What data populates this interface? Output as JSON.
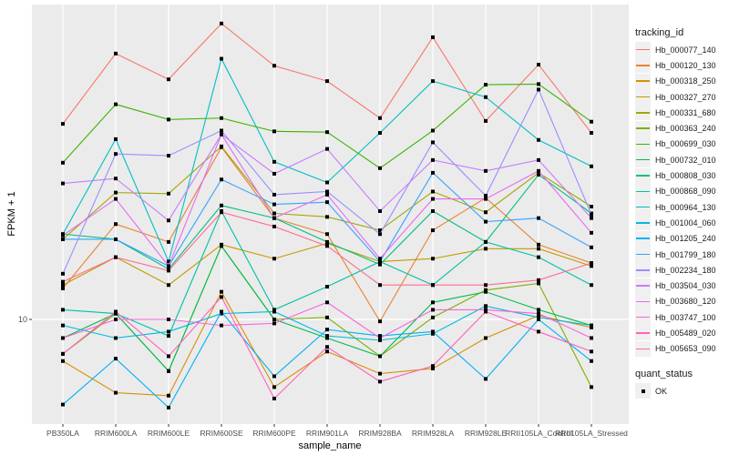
{
  "chart_data": {
    "type": "line",
    "title": "",
    "xlabel": "sample_name",
    "ylabel": "FPKM + 1",
    "yscale": "log10",
    "ylim": [
      6.0,
      46.0
    ],
    "yticks": [
      10
    ],
    "ytick_labels": [
      "10"
    ],
    "grid": true,
    "legend_position": "right",
    "categories": [
      "PB350LA",
      "RRIM600LA",
      "RRIM600LE",
      "RRIM600SE",
      "RRIM600PE",
      "RRIM901LA",
      "RRIM928BA",
      "RRIM928LA",
      "RRIM928LE",
      "RRII105LA_Control",
      "RRII105LA_Stressed"
    ],
    "legend_title": "tracking_id",
    "shape_legend_title": "quant_status",
    "shape_legend_items": [
      "OK"
    ],
    "series": [
      {
        "name": "Hb_000077_140",
        "color": "#F8766D",
        "values": [
          26.9,
          38.4,
          33.7,
          44.7,
          36.1,
          33.4,
          27.7,
          41.7,
          27.3,
          36.3,
          25.7
        ]
      },
      {
        "name": "Hb_000120_130",
        "color": "#EA8331",
        "values": [
          11.7,
          16.2,
          14.8,
          23.9,
          16.7,
          15.4,
          9.9,
          15.7,
          18.5,
          14.6,
          13.3
        ]
      },
      {
        "name": "Hb_000318_250",
        "color": "#D89000",
        "values": [
          8.1,
          6.9,
          6.8,
          11.5,
          7.1,
          8.5,
          7.6,
          7.8,
          9.1,
          10.2,
          9.6
        ]
      },
      {
        "name": "Hb_000327_270",
        "color": "#C09B00",
        "values": [
          11.9,
          13.7,
          11.9,
          14.6,
          13.6,
          14.7,
          13.4,
          13.6,
          14.3,
          14.3,
          13.1
        ]
      },
      {
        "name": "Hb_000331_680",
        "color": "#A3A500",
        "values": [
          15.0,
          19.0,
          18.9,
          24.0,
          17.1,
          16.8,
          15.7,
          19.1,
          17.2,
          21.0,
          17.7
        ]
      },
      {
        "name": "Hb_000363_240",
        "color": "#7CAE00",
        "values": [
          8.4,
          10.3,
          7.7,
          14.5,
          10.0,
          10.1,
          8.3,
          10.1,
          11.6,
          12.0,
          7.1
        ]
      },
      {
        "name": "Hb_000699_030",
        "color": "#39B600",
        "values": [
          22.1,
          29.7,
          27.5,
          27.7,
          25.9,
          25.8,
          21.5,
          26.0,
          32.8,
          32.9,
          27.2
        ]
      },
      {
        "name": "Hb_000732_010",
        "color": "#00BB4E",
        "values": [
          9.1,
          10.3,
          7.7,
          14.5,
          10.0,
          9.1,
          8.3,
          10.9,
          11.5,
          10.5,
          9.7
        ]
      },
      {
        "name": "Hb_000808_030",
        "color": "#00BF7D",
        "values": [
          15.4,
          15.0,
          12.9,
          17.8,
          16.7,
          14.8,
          13.2,
          17.3,
          14.8,
          20.8,
          17.1
        ]
      },
      {
        "name": "Hb_000868_090",
        "color": "#00C1A3",
        "values": [
          10.5,
          10.3,
          9.2,
          17.3,
          10.5,
          11.8,
          13.4,
          11.9,
          14.8,
          13.7,
          11.9
        ]
      },
      {
        "name": "Hb_000964_130",
        "color": "#00BFC4",
        "values": [
          15.4,
          24.9,
          13.4,
          37.4,
          22.2,
          20.0,
          25.7,
          33.4,
          30.8,
          24.8,
          21.7
        ]
      },
      {
        "name": "Hb_001004_060",
        "color": "#00BAE0",
        "values": [
          9.7,
          9.1,
          9.4,
          10.3,
          10.4,
          9.2,
          9.0,
          9.3,
          10.7,
          10.1,
          9.7
        ]
      },
      {
        "name": "Hb_001205_240",
        "color": "#00B0F6",
        "values": [
          6.5,
          8.2,
          6.4,
          10.4,
          7.5,
          9.5,
          9.2,
          9.4,
          7.4,
          10.0,
          8.1
        ]
      },
      {
        "name": "Hb_001799_180",
        "color": "#35A2FF",
        "values": [
          15.0,
          15.0,
          13.1,
          20.3,
          17.9,
          18.1,
          13.4,
          21.0,
          16.4,
          16.7,
          14.4
        ]
      },
      {
        "name": "Hb_002234_180",
        "color": "#9590FF",
        "values": [
          12.6,
          23.1,
          22.9,
          26.0,
          18.8,
          19.1,
          15.4,
          24.5,
          18.7,
          32.0,
          17.0
        ]
      },
      {
        "name": "Hb_003504_030",
        "color": "#C77CFF",
        "values": [
          19.9,
          20.4,
          16.5,
          25.5,
          20.9,
          23.7,
          17.3,
          22.4,
          21.2,
          22.4,
          16.7
        ]
      },
      {
        "name": "Hb_003680_120",
        "color": "#E76BF3",
        "values": [
          15.3,
          18.4,
          13.1,
          25.5,
          16.7,
          18.8,
          13.6,
          18.4,
          18.4,
          21.2,
          15.5
        ]
      },
      {
        "name": "Hb_003747_100",
        "color": "#FA62DB",
        "values": [
          9.1,
          10.0,
          10.0,
          9.7,
          9.8,
          10.9,
          9.1,
          10.5,
          10.5,
          10.3,
          9.1
        ]
      },
      {
        "name": "Hb_005489_020",
        "color": "#FF62BC",
        "values": [
          8.4,
          10.4,
          8.3,
          11.2,
          6.7,
          8.7,
          7.3,
          7.9,
          10.4,
          9.4,
          8.5
        ]
      },
      {
        "name": "Hb_005653_090",
        "color": "#FF6C91",
        "values": [
          12.1,
          13.7,
          12.8,
          17.2,
          16.0,
          14.5,
          11.9,
          11.9,
          11.9,
          12.2,
          13.3
        ]
      }
    ]
  }
}
